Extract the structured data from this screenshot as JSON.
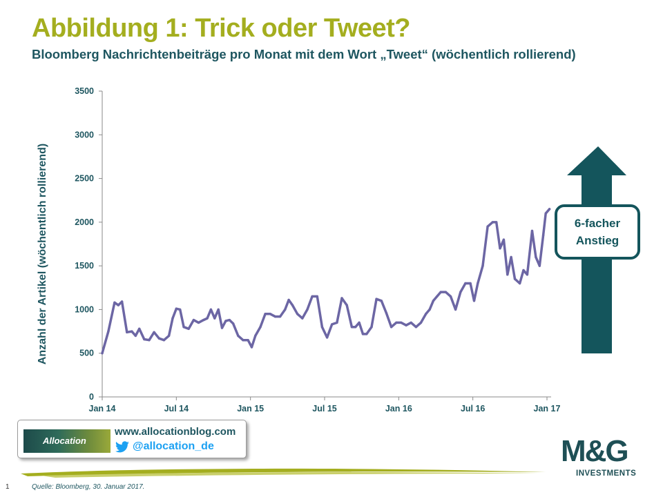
{
  "header": {
    "title": "Abbildung 1: Trick oder Tweet?",
    "subtitle": "Bloomberg Nachrichtenbeiträge pro Monat mit dem Wort „Tweet“ (wöchentlich rollierend)"
  },
  "chart_data": {
    "type": "line",
    "title": "Abbildung 1: Trick oder Tweet?",
    "subtitle": "Bloomberg Nachrichtenbeiträge pro Monat mit dem Wort „Tweet“ (wöchentlich rollierend)",
    "xlabel": "",
    "ylabel": "Anzahl der Artikel (wöchentlich rollierend)",
    "ylim": [
      0,
      3500
    ],
    "yticks": [
      0,
      500,
      1000,
      1500,
      2000,
      2500,
      3000,
      3500
    ],
    "xtick_labels": [
      "Jan 14",
      "Jul 14",
      "Jan 15",
      "Jul 15",
      "Jan 16",
      "Jul 16",
      "Jan 17"
    ],
    "x_unit": "Monate seit Jan 14",
    "grid": false,
    "legend": "none",
    "line_color": "#6c66a4",
    "series": [
      {
        "name": "",
        "x": [
          0,
          0.5,
          1,
          1.3,
          1.6,
          2,
          2.4,
          2.7,
          3,
          3.4,
          3.8,
          4.2,
          4.6,
          5,
          5.4,
          5.7,
          6,
          6.3,
          6.6,
          7,
          7.4,
          7.8,
          8.2,
          8.5,
          8.8,
          9.1,
          9.4,
          9.7,
          10,
          10.3,
          10.6,
          11,
          11.4,
          11.8,
          12.1,
          12.4,
          12.8,
          13.2,
          13.6,
          14,
          14.4,
          14.8,
          15.1,
          15.4,
          15.8,
          16.2,
          16.6,
          17,
          17.4,
          17.8,
          18.2,
          18.6,
          19,
          19.4,
          19.8,
          20.2,
          20.5,
          20.8,
          21.1,
          21.4,
          21.8,
          22.2,
          22.6,
          23,
          23.4,
          23.8,
          24.2,
          24.6,
          25,
          25.4,
          25.8,
          26.2,
          26.5,
          26.8,
          27.1,
          27.4,
          27.8,
          28.2,
          28.6,
          29,
          29.4,
          29.8,
          30.1,
          30.4,
          30.8,
          31.2,
          31.6,
          31.9,
          32.2,
          32.5,
          32.8,
          33.1,
          33.4,
          33.8,
          34.1,
          34.4,
          34.8,
          35.1,
          35.4,
          35.7,
          35.9,
          36.2
        ],
        "values": [
          500,
          750,
          1080,
          1050,
          1090,
          740,
          750,
          700,
          780,
          660,
          650,
          740,
          670,
          650,
          700,
          900,
          1010,
          1000,
          800,
          780,
          880,
          850,
          880,
          900,
          1000,
          900,
          1000,
          790,
          870,
          880,
          840,
          700,
          650,
          650,
          570,
          700,
          800,
          950,
          950,
          920,
          920,
          1000,
          1110,
          1050,
          950,
          900,
          1000,
          1150,
          1150,
          800,
          680,
          830,
          850,
          1130,
          1050,
          800,
          800,
          850,
          720,
          720,
          800,
          1120,
          1100,
          960,
          800,
          850,
          850,
          820,
          850,
          800,
          850,
          950,
          1000,
          1100,
          1150,
          1200,
          1200,
          1150,
          1000,
          1200,
          1300,
          1300,
          1100,
          1300,
          1500,
          1950,
          2000,
          2000,
          1700,
          1800,
          1400,
          1600,
          1350,
          1300,
          1450,
          1400,
          1900,
          1600,
          1500,
          1850,
          2100,
          2150
        ]
      }
    ],
    "annotation": {
      "line1": "6-facher",
      "line2": "Anstieg",
      "arrow_color": "#14555c"
    }
  },
  "footer": {
    "logo_text": "Allocation",
    "url": "www.allocationblog.com",
    "handle": "@allocation_de",
    "brand_mark": "M&G",
    "brand_sub": "INVESTMENTS",
    "page_number": "1",
    "source": "Quelle: Bloomberg, 30. Januar 2017."
  },
  "colors": {
    "title": "#a4ae1f",
    "text": "#1e5660",
    "line": "#6c66a4",
    "arrow": "#14555c",
    "twitter": "#1da1f2"
  }
}
